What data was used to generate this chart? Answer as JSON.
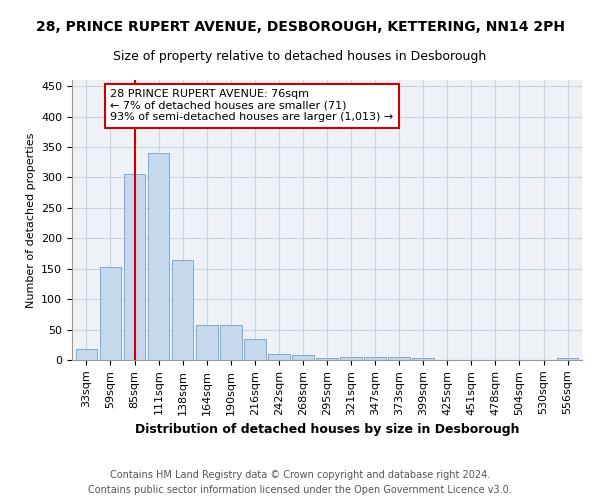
{
  "title1": "28, PRINCE RUPERT AVENUE, DESBOROUGH, KETTERING, NN14 2PH",
  "title2": "Size of property relative to detached houses in Desborough",
  "xlabel": "Distribution of detached houses by size in Desborough",
  "ylabel": "Number of detached properties",
  "footer1": "Contains HM Land Registry data © Crown copyright and database right 2024.",
  "footer2": "Contains public sector information licensed under the Open Government Licence v3.0.",
  "categories": [
    "33sqm",
    "59sqm",
    "85sqm",
    "111sqm",
    "138sqm",
    "164sqm",
    "190sqm",
    "216sqm",
    "242sqm",
    "268sqm",
    "295sqm",
    "321sqm",
    "347sqm",
    "373sqm",
    "399sqm",
    "425sqm",
    "451sqm",
    "478sqm",
    "504sqm",
    "530sqm",
    "556sqm"
  ],
  "values": [
    18,
    153,
    305,
    340,
    165,
    57,
    57,
    34,
    10,
    8,
    3,
    5,
    5,
    5,
    3,
    0,
    0,
    0,
    0,
    0,
    3
  ],
  "bar_color": "#c5d8ee",
  "bar_edge_color": "#7aaed6",
  "ylim": [
    0,
    460
  ],
  "yticks": [
    0,
    50,
    100,
    150,
    200,
    250,
    300,
    350,
    400,
    450
  ],
  "vline_x": 2.0,
  "annotation_text": "28 PRINCE RUPERT AVENUE: 76sqm\n← 7% of detached houses are smaller (71)\n93% of semi-detached houses are larger (1,013) →",
  "annotation_box_color": "#ffffff",
  "annotation_box_edge": "#cc0000",
  "bg_color": "#eef2f7",
  "grid_color": "#c8d4e0",
  "title1_fontsize": 10,
  "title2_fontsize": 9,
  "xlabel_fontsize": 9,
  "ylabel_fontsize": 8,
  "tick_fontsize": 8,
  "annotation_fontsize": 8,
  "footer_fontsize": 7
}
